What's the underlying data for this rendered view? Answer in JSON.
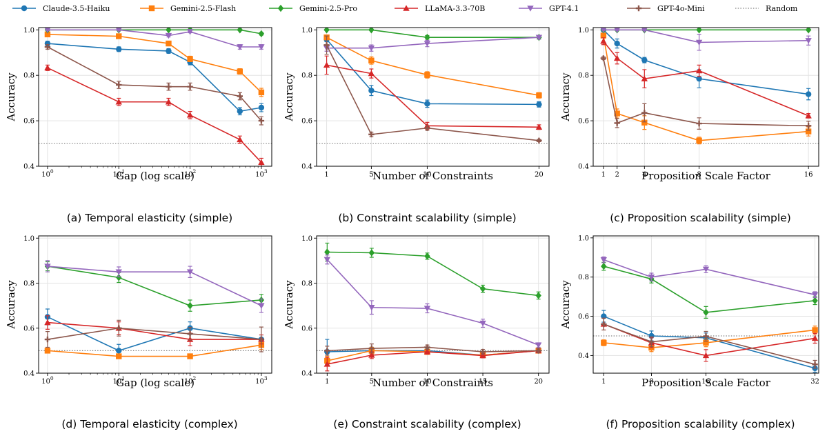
{
  "legend": [
    {
      "name": "Claude-3.5-Haiku",
      "color": "#1f77b4",
      "marker": "circle"
    },
    {
      "name": "Gemini-2.5-Flash",
      "color": "#ff7f0e",
      "marker": "square"
    },
    {
      "name": "Gemini-2.5-Pro",
      "color": "#2ca02c",
      "marker": "diamond"
    },
    {
      "name": "LLaMA-3.3-70B",
      "color": "#d62728",
      "marker": "triangle-up"
    },
    {
      "name": "GPT-4.1",
      "color": "#9467bd",
      "marker": "triangle-down"
    },
    {
      "name": "GPT-4o-Mini",
      "color": "#8c564b",
      "marker": "plus"
    },
    {
      "name": "Random",
      "color": "#808080",
      "marker": "dotted-line"
    }
  ],
  "chart_data": [
    {
      "type": "line",
      "caption": "(a) Temporal elasticity (simple)",
      "xlabel": "Gap (log scale)",
      "ylabel": "Accuracy",
      "xscale": "log",
      "xlim": [
        0.75,
        1400
      ],
      "ylim": [
        0.4,
        1.01
      ],
      "xticks": [
        1,
        10,
        100,
        1000
      ],
      "xtick_labels": [
        "10^0",
        "10^1",
        "10^2",
        "10^3"
      ],
      "yticks": [
        0.4,
        0.6,
        0.8,
        1.0
      ],
      "ytick_labels": [
        "0.4",
        "0.6",
        "0.8",
        "1.0"
      ],
      "random_baseline": 0.5,
      "grid": true,
      "x": [
        1,
        10,
        50,
        100,
        500,
        1000
      ],
      "series": [
        {
          "name": "Claude-3.5-Haiku",
          "values": [
            0.94,
            0.915,
            0.907,
            0.858,
            0.642,
            0.658
          ],
          "err": [
            0.01,
            0.01,
            0.01,
            0.012,
            0.016,
            0.018
          ]
        },
        {
          "name": "Gemini-2.5-Flash",
          "values": [
            0.98,
            0.972,
            0.94,
            0.872,
            0.817,
            0.725
          ],
          "err": [
            0.005,
            0.005,
            0.008,
            0.012,
            0.012,
            0.018
          ]
        },
        {
          "name": "Gemini-2.5-Pro",
          "values": [
            1.0,
            1.0,
            1.0,
            1.0,
            1.0,
            0.983
          ],
          "err": [
            0.003,
            0.003,
            0.003,
            0.003,
            0.003,
            0.006
          ]
        },
        {
          "name": "LLaMA-3.3-70B",
          "values": [
            0.833,
            0.683,
            0.683,
            0.625,
            0.517,
            0.417
          ],
          "err": [
            0.012,
            0.016,
            0.016,
            0.016,
            0.016,
            0.018
          ]
        },
        {
          "name": "GPT-4.1",
          "values": [
            1.0,
            1.0,
            0.975,
            0.992,
            0.925,
            0.925
          ],
          "err": [
            0.003,
            0.003,
            0.006,
            0.005,
            0.01,
            0.01
          ]
        },
        {
          "name": "GPT-4o-Mini",
          "values": [
            0.925,
            0.758,
            0.75,
            0.75,
            0.708,
            0.6
          ],
          "err": [
            0.01,
            0.016,
            0.016,
            0.016,
            0.016,
            0.018
          ]
        }
      ]
    },
    {
      "type": "line",
      "caption": "(b) Constraint scalability (simple)",
      "xlabel": "Number of Constraints",
      "ylabel": "Accuracy",
      "xscale": "linear",
      "xlim": [
        0.1,
        20.9
      ],
      "ylim": [
        0.4,
        1.01
      ],
      "xticks": [
        1,
        5,
        10,
        20
      ],
      "xtick_labels": [
        "1",
        "5",
        "10",
        "20"
      ],
      "yticks": [
        0.4,
        0.6,
        0.8,
        1.0
      ],
      "ytick_labels": [
        "0.4",
        "0.6",
        "0.8",
        "1.0"
      ],
      "random_baseline": 0.5,
      "grid": true,
      "x": [
        1,
        5,
        10,
        20
      ],
      "series": [
        {
          "name": "Claude-3.5-Haiku",
          "values": [
            0.958,
            0.733,
            0.675,
            0.672
          ],
          "err": [
            0.01,
            0.022,
            0.016,
            0.012
          ]
        },
        {
          "name": "Gemini-2.5-Flash",
          "values": [
            0.967,
            0.865,
            0.802,
            0.712
          ],
          "err": [
            0.006,
            0.016,
            0.014,
            0.012
          ]
        },
        {
          "name": "Gemini-2.5-Pro",
          "values": [
            1.0,
            1.0,
            0.967,
            0.967
          ],
          "err": [
            0.003,
            0.003,
            0.008,
            0.008
          ]
        },
        {
          "name": "LLaMA-3.3-70B",
          "values": [
            0.845,
            0.808,
            0.578,
            0.572
          ],
          "err": [
            0.04,
            0.02,
            0.015,
            0.01
          ]
        },
        {
          "name": "GPT-4.1",
          "values": [
            0.92,
            0.92,
            0.94,
            0.967
          ],
          "err": [
            0.014,
            0.014,
            0.014,
            0.008
          ]
        },
        {
          "name": "GPT-4o-Mini",
          "values": [
            0.933,
            0.54,
            0.568,
            0.513
          ],
          "err": [
            0.04,
            0.01,
            0.01,
            0.005
          ]
        }
      ]
    },
    {
      "type": "line",
      "caption": "(c) Proposition scalability (simple)",
      "xlabel": "Proposition Scale Factor",
      "ylabel": "Accuracy",
      "xscale": "linear",
      "xlim": [
        0.25,
        16.75
      ],
      "ylim": [
        0.4,
        1.01
      ],
      "xticks": [
        1,
        2,
        4,
        8,
        16
      ],
      "xtick_labels": [
        "1",
        "2",
        "4",
        "8",
        "16"
      ],
      "yticks": [
        0.4,
        0.6,
        0.8,
        1.0
      ],
      "ytick_labels": [
        "0.4",
        "0.6",
        "0.8",
        "1.0"
      ],
      "random_baseline": 0.5,
      "grid": true,
      "x": [
        1,
        2,
        4,
        8,
        16
      ],
      "series": [
        {
          "name": "Claude-3.5-Haiku",
          "values": [
            1.0,
            0.94,
            0.867,
            0.785,
            0.717
          ],
          "err": [
            0.003,
            0.02,
            0.012,
            0.04,
            0.025
          ]
        },
        {
          "name": "Gemini-2.5-Flash",
          "values": [
            0.975,
            0.632,
            0.592,
            0.513,
            0.553
          ],
          "err": [
            0.008,
            0.02,
            0.03,
            0.015,
            0.02
          ]
        },
        {
          "name": "Gemini-2.5-Pro",
          "values": [
            1.0,
            1.0,
            1.0,
            1.0,
            1.0
          ],
          "err": [
            0.003,
            0.003,
            0.003,
            0.003,
            0.003
          ]
        },
        {
          "name": "LLaMA-3.3-70B",
          "values": [
            0.95,
            0.875,
            0.785,
            0.82,
            0.622
          ],
          "err": [
            0.015,
            0.025,
            0.04,
            0.025,
            0.01
          ]
        },
        {
          "name": "GPT-4.1",
          "values": [
            1.0,
            1.0,
            1.0,
            0.945,
            0.953
          ],
          "err": [
            0.003,
            0.003,
            0.003,
            0.035,
            0.02
          ]
        },
        {
          "name": "GPT-4o-Mini",
          "values": [
            0.875,
            0.59,
            0.635,
            0.588,
            0.578
          ],
          "err": [
            0.006,
            0.02,
            0.04,
            0.025,
            0.02
          ]
        }
      ]
    },
    {
      "type": "line",
      "caption": "(d) Temporal elasticity (complex)",
      "xlabel": "Gap (log scale)",
      "ylabel": "Accuracy",
      "xscale": "log",
      "xlim": [
        0.75,
        1400
      ],
      "ylim": [
        0.4,
        1.01
      ],
      "xticks": [
        1,
        10,
        100,
        1000
      ],
      "xtick_labels": [
        "10^0",
        "10^1",
        "10^2",
        "10^3"
      ],
      "yticks": [
        0.4,
        0.6,
        0.8,
        1.0
      ],
      "ytick_labels": [
        "0.4",
        "0.6",
        "0.8",
        "1.0"
      ],
      "random_baseline": 0.5,
      "grid": true,
      "x": [
        1,
        10,
        100,
        1000
      ],
      "series": [
        {
          "name": "Claude-3.5-Haiku",
          "values": [
            0.65,
            0.5,
            0.6,
            0.55
          ],
          "err": [
            0.035,
            0.028,
            0.028,
            0.02
          ]
        },
        {
          "name": "Gemini-2.5-Flash",
          "values": [
            0.5,
            0.475,
            0.475,
            0.525
          ],
          "err": [
            0.006,
            0.006,
            0.006,
            0.02
          ]
        },
        {
          "name": "Gemini-2.5-Pro",
          "values": [
            0.875,
            0.825,
            0.7,
            0.725
          ],
          "err": [
            0.02,
            0.022,
            0.025,
            0.025
          ]
        },
        {
          "name": "LLaMA-3.3-70B",
          "values": [
            0.625,
            0.6,
            0.55,
            0.55
          ],
          "err": [
            0.03,
            0.028,
            0.028,
            0.02
          ]
        },
        {
          "name": "GPT-4.1",
          "values": [
            0.875,
            0.85,
            0.85,
            0.7
          ],
          "err": [
            0.025,
            0.022,
            0.025,
            0.03
          ]
        },
        {
          "name": "GPT-4o-Mini",
          "values": [
            0.55,
            0.6,
            0.575,
            0.55
          ],
          "err": [
            0.035,
            0.035,
            0.028,
            0.055
          ]
        }
      ]
    },
    {
      "type": "line",
      "caption": "(e) Constraint scalability (complex)",
      "xlabel": "Number of Constraints",
      "ylabel": "Accuracy",
      "xscale": "linear",
      "xlim": [
        0.05,
        20.95
      ],
      "ylim": [
        0.4,
        1.01
      ],
      "xticks": [
        1,
        5,
        10,
        15,
        20
      ],
      "xtick_labels": [
        "1",
        "5",
        "10",
        "15",
        "20"
      ],
      "yticks": [
        0.4,
        0.6,
        0.8,
        1.0
      ],
      "ytick_labels": [
        "0.4",
        "0.6",
        "0.8",
        "1.0"
      ],
      "random_baseline": 0.5,
      "grid": true,
      "x": [
        1,
        5,
        10,
        15,
        20
      ],
      "series": [
        {
          "name": "Claude-3.5-Haiku",
          "values": [
            0.495,
            0.5,
            0.5,
            0.48,
            0.5
          ],
          "err": [
            0.055,
            0.015,
            0.012,
            0.01,
            0.008
          ]
        },
        {
          "name": "Gemini-2.5-Flash",
          "values": [
            0.455,
            0.5,
            0.495,
            0.48,
            0.5
          ],
          "err": [
            0.02,
            0.015,
            0.012,
            0.01,
            0.008
          ]
        },
        {
          "name": "Gemini-2.5-Pro",
          "values": [
            0.938,
            0.935,
            0.92,
            0.775,
            0.745
          ],
          "err": [
            0.04,
            0.02,
            0.014,
            0.016,
            0.016
          ]
        },
        {
          "name": "LLaMA-3.3-70B",
          "values": [
            0.44,
            0.48,
            0.495,
            0.478,
            0.5
          ],
          "err": [
            0.03,
            0.015,
            0.01,
            0.01,
            0.008
          ]
        },
        {
          "name": "GPT-4.1",
          "values": [
            0.905,
            0.692,
            0.688,
            0.622,
            0.525
          ],
          "err": [
            0.02,
            0.03,
            0.02,
            0.018,
            0.01
          ]
        },
        {
          "name": "GPT-4o-Mini",
          "values": [
            0.5,
            0.51,
            0.515,
            0.495,
            0.5
          ],
          "err": [
            0.02,
            0.02,
            0.01,
            0.01,
            0.008
          ]
        }
      ]
    },
    {
      "type": "line",
      "caption": "(f) Proposition scalability (complex)",
      "xlabel": "Proposition Scale Factor",
      "ylabel": "Accuracy",
      "xscale": "linear",
      "xlim": [
        -0.55,
        32.55
      ],
      "ylim": [
        0.31,
        1.01
      ],
      "xticks": [
        1,
        8,
        16,
        32
      ],
      "xtick_labels": [
        "1",
        "8",
        "16",
        "32"
      ],
      "yticks": [
        0.4,
        0.6,
        0.8,
        1.0
      ],
      "ytick_labels": [
        "0.4",
        "0.6",
        "0.8",
        "1.0"
      ],
      "random_baseline": 0.5,
      "grid": true,
      "x": [
        1,
        8,
        16,
        32
      ],
      "series": [
        {
          "name": "Claude-3.5-Haiku",
          "values": [
            0.6,
            0.5,
            0.49,
            0.335
          ],
          "err": [
            0.03,
            0.025,
            0.025,
            0.02
          ]
        },
        {
          "name": "Gemini-2.5-Flash",
          "values": [
            0.465,
            0.44,
            0.465,
            0.53
          ],
          "err": [
            0.015,
            0.02,
            0.02,
            0.02
          ]
        },
        {
          "name": "Gemini-2.5-Pro",
          "values": [
            0.855,
            0.79,
            0.62,
            0.68
          ],
          "err": [
            0.02,
            0.02,
            0.03,
            0.02
          ]
        },
        {
          "name": "LLaMA-3.3-70B",
          "values": [
            0.56,
            0.465,
            0.4,
            0.488
          ],
          "err": [
            0.03,
            0.025,
            0.03,
            0.025
          ]
        },
        {
          "name": "GPT-4.1",
          "values": [
            0.888,
            0.8,
            0.84,
            0.71
          ],
          "err": [
            0.015,
            0.02,
            0.018,
            0.015
          ]
        },
        {
          "name": "GPT-4o-Mini",
          "values": [
            0.56,
            0.47,
            0.498,
            0.355
          ],
          "err": [
            0.03,
            0.025,
            0.025,
            0.02
          ]
        }
      ]
    }
  ]
}
